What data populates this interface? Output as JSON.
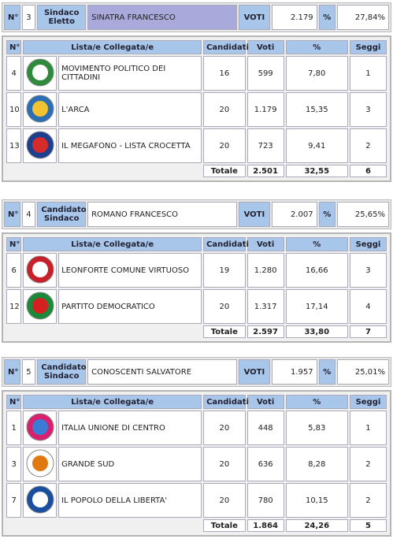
{
  "blocks": [
    {
      "no_label": "N°",
      "number": "3",
      "role": "Sindaco Eletto",
      "name": "SINATRA FRANCESCO",
      "votes_label": "VOTI",
      "votes": "2.179",
      "pct_label": "%",
      "pct": "27,84%",
      "columns": [
        "N°",
        "Lista/e Collegata/e",
        "Candidati",
        "Voti",
        "%",
        "Seggi"
      ],
      "rows": [
        {
          "no": "4",
          "list": "MOVIMENTO POLITICO DEI CITTADINI",
          "candidates": "16",
          "votes": "599",
          "pct": "7,80",
          "seats": "1"
        },
        {
          "no": "10",
          "list": "L'ARCA",
          "candidates": "20",
          "votes": "1.179",
          "pct": "15,35",
          "seats": "3"
        },
        {
          "no": "13",
          "list": "IL MEGAFONO - LISTA CROCETTA",
          "candidates": "20",
          "votes": "723",
          "pct": "9,41",
          "seats": "2"
        }
      ],
      "total": {
        "label": "Totale",
        "votes": "2.501",
        "pct": "32,55",
        "seats": "6"
      }
    },
    {
      "no_label": "N°",
      "number": "4",
      "role": "Candidato Sindaco",
      "name": "ROMANO FRANCESCO",
      "votes_label": "VOTI",
      "votes": "2.007",
      "pct_label": "%",
      "pct": "25,65%",
      "columns": [
        "N°",
        "Lista/e Collegata/e",
        "Candidati",
        "Voti",
        "%",
        "Seggi"
      ],
      "rows": [
        {
          "no": "6",
          "list": "LEONFORTE COMUNE VIRTUOSO",
          "candidates": "19",
          "votes": "1.280",
          "pct": "16,66",
          "seats": "3"
        },
        {
          "no": "12",
          "list": "PARTITO DEMOCRATICO",
          "candidates": "20",
          "votes": "1.317",
          "pct": "17,14",
          "seats": "4"
        }
      ],
      "total": {
        "label": "Totale",
        "votes": "2.597",
        "pct": "33,80",
        "seats": "7"
      }
    },
    {
      "no_label": "N°",
      "number": "5",
      "role": "Candidato Sindaco",
      "name": "CONOSCENTI SALVATORE",
      "votes_label": "VOTI",
      "votes": "1.957",
      "pct_label": "%",
      "pct": "25,01%",
      "columns": [
        "N°",
        "Lista/e Collegata/e",
        "Candidati",
        "Voti",
        "%",
        "Seggi"
      ],
      "rows": [
        {
          "no": "1",
          "list": "ITALIA UNIONE DI CENTRO",
          "candidates": "20",
          "votes": "448",
          "pct": "5,83",
          "seats": "1"
        },
        {
          "no": "3",
          "list": "GRANDE SUD",
          "candidates": "20",
          "votes": "636",
          "pct": "8,28",
          "seats": "2"
        },
        {
          "no": "7",
          "list": "IL POPOLO DELLA LIBERTA'",
          "candidates": "20",
          "votes": "780",
          "pct": "10,15",
          "seats": "2"
        }
      ],
      "total": {
        "label": "Totale",
        "votes": "1.864",
        "pct": "24,26",
        "seats": "5"
      }
    }
  ]
}
